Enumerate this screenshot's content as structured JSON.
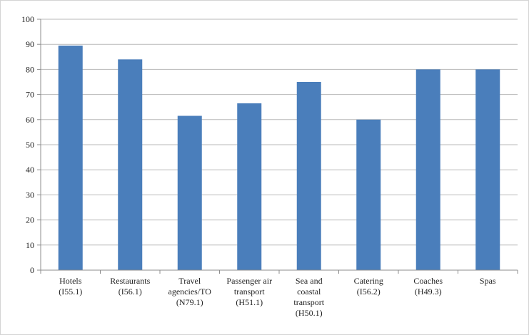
{
  "chart_data": {
    "type": "bar",
    "title": "",
    "xlabel": "",
    "ylabel": "",
    "categories": [
      [
        "Hotels",
        "(I55.1)"
      ],
      [
        "Restaurants",
        "(I56.1)"
      ],
      [
        "Travel",
        "agencies/TO",
        "(N79.1)"
      ],
      [
        "Passenger air",
        "transport",
        "(H51.1)"
      ],
      [
        "Sea and",
        "coastal",
        "transport",
        "(H50.1)"
      ],
      [
        "Catering",
        "(I56.2)"
      ],
      [
        "Coaches",
        "(H49.3)"
      ],
      [
        "Spas"
      ]
    ],
    "values": [
      89.5,
      84,
      61.5,
      66.5,
      75,
      60,
      80,
      80
    ],
    "ylim": [
      0,
      100
    ],
    "yticks": [
      0,
      10,
      20,
      30,
      40,
      50,
      60,
      70,
      80,
      90,
      100
    ],
    "grid": true,
    "legend": "none",
    "bar_color": "#4a7ebb"
  }
}
